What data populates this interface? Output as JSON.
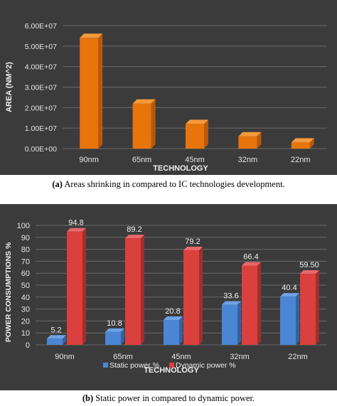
{
  "chart_data": [
    {
      "type": "bar",
      "categories": [
        "90nm",
        "65nm",
        "45nm",
        "32nm",
        "22nm"
      ],
      "values": [
        54000000.0,
        22000000.0,
        12000000.0,
        6000000.0,
        3000000.0
      ],
      "xlabel": "TECHNOLOGY",
      "ylabel": "AREA (NM^2)",
      "ylim": [
        0,
        60000000.0
      ],
      "yticks": [
        "0.00E+00",
        "1.00E+07",
        "2.00E+07",
        "3.00E+07",
        "4.00E+07",
        "5.00E+07",
        "6.00E+07"
      ],
      "grid": true,
      "legend": "none",
      "colors": {
        "bar": "#e8740c",
        "bar_side": "#b9580a",
        "bar_top": "#f59a3c",
        "background": "#3b3b3b"
      }
    },
    {
      "type": "bar",
      "categories": [
        "90nm",
        "65nm",
        "45nm",
        "32nm",
        "22nm"
      ],
      "series": [
        {
          "name": "Static power %",
          "values": [
            5.2,
            10.8,
            20.8,
            33.6,
            40.4
          ],
          "labels": [
            "5.2",
            "10.8",
            "20.8",
            "33.6",
            "40.4"
          ]
        },
        {
          "name": "Dynamic power %",
          "values": [
            94.8,
            89.2,
            79.2,
            66.4,
            59.5
          ],
          "labels": [
            "94.8",
            "89.2",
            "79.2",
            "66.4",
            "59.50"
          ]
        }
      ],
      "xlabel": "TECHNOLOGY",
      "ylabel": "POWER CONSUMPTIONS %",
      "ylim": [
        0,
        100
      ],
      "yticks": [
        "0",
        "10",
        "20",
        "30",
        "40",
        "50",
        "60",
        "70",
        "80",
        "90",
        "100"
      ],
      "grid": true,
      "legend": "bottom",
      "colors": {
        "static": "#4a86d4",
        "static_side": "#34629d",
        "static_top": "#6ea2e4",
        "dynamic": "#d9403e",
        "dynamic_side": "#a12e2c",
        "dynamic_top": "#e8696a",
        "background": "#3b3b3b"
      }
    }
  ],
  "captions": {
    "a_tag": "(a)",
    "a_text": " Areas shrinking in compared to IC technologies development.",
    "b_tag": "(b)",
    "b_text": " Static power in compared to dynamic power."
  }
}
